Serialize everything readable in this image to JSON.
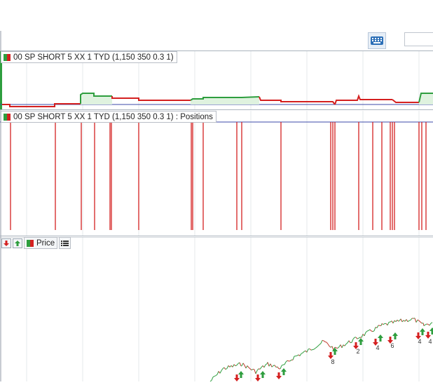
{
  "colors": {
    "equity_up": "#2e9e3e",
    "equity_down": "#d42020",
    "equity_fill": "#dff2df",
    "position_line": "#d42020",
    "price_up": "#2e9e3e",
    "price_down": "#c0392b",
    "buy_arrow": "#2e9e3e",
    "sell_arrow": "#d42020",
    "grid": "#e6e8eb",
    "baseline": "#3b4aa8"
  },
  "header": {
    "keyboard_icon": "keyboard-icon"
  },
  "equity_pane": {
    "legend": "00 SP SHORT 5 XX 1 TYD (1,150 350 0.3 1)"
  },
  "positions_pane": {
    "legend": "00 SP SHORT 5 XX 1 TYD (1,150 350 0.3 1) : Positions",
    "event_count": 28
  },
  "price_pane": {
    "toolbar": {
      "sell_icon": "arrow-down-icon",
      "buy_icon": "arrow-up-icon",
      "price_label": "Price",
      "list_icon": "list-icon"
    },
    "trade_labels": [
      "8",
      "2",
      "4",
      "6",
      "4",
      "4"
    ]
  }
}
